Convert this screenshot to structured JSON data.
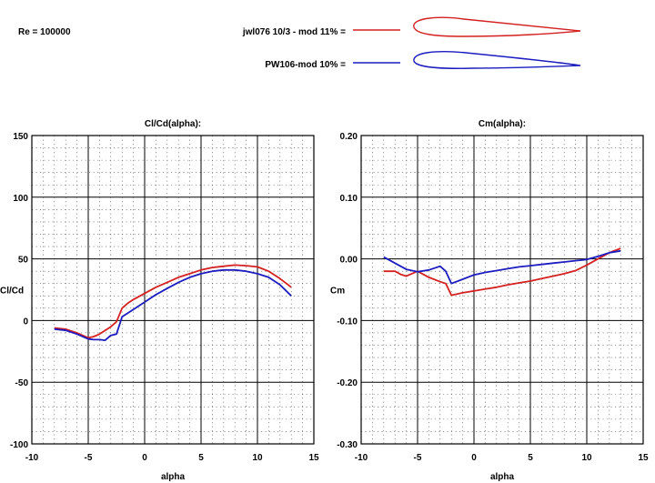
{
  "header": {
    "reynolds": "Re = 100000",
    "legend": [
      {
        "name": "jwl076 10/3  - mod 11% =",
        "color": "#d42020"
      },
      {
        "name": "PW106-mod 10% =",
        "color": "#1c1cc0"
      }
    ]
  },
  "chart_data": [
    {
      "type": "line",
      "title": "Cl/Cd(alpha):",
      "xlabel": "alpha",
      "ylabel": "Cl/Cd",
      "xlim": [
        -10,
        15
      ],
      "ylim": [
        -100,
        150
      ],
      "xticks": [
        "-10",
        "-5",
        "0",
        "5",
        "10",
        "15"
      ],
      "yticks": [
        "-100",
        "-50",
        "0",
        "50",
        "100",
        "150"
      ],
      "grid": true,
      "series": [
        {
          "name": "jwl076 10/3  - mod 11%",
          "color": "#d42020",
          "x": [
            -8,
            -7,
            -6,
            -5,
            -4.5,
            -4,
            -3,
            -2.5,
            -2,
            -1.5,
            -1,
            0,
            1,
            2,
            3,
            4,
            5,
            6,
            7,
            8,
            9,
            10,
            11,
            12,
            13
          ],
          "y": [
            -6,
            -7,
            -10,
            -14,
            -13,
            -11,
            -5,
            -1,
            10,
            14,
            17,
            22,
            27,
            31,
            35,
            38,
            41,
            43,
            44,
            45,
            44.5,
            43.5,
            40,
            34,
            27
          ]
        },
        {
          "name": "PW106-mod 10%",
          "color": "#1c1cc0",
          "x": [
            -8,
            -7,
            -6,
            -5,
            -4.5,
            -4,
            -3.5,
            -3,
            -2.5,
            -2,
            -1,
            0,
            1,
            2,
            3,
            4,
            5,
            6,
            7,
            8,
            9,
            10,
            11,
            12,
            13
          ],
          "y": [
            -7,
            -8,
            -11,
            -15,
            -15.5,
            -15.5,
            -16,
            -12,
            -11,
            3,
            9,
            15,
            21,
            26,
            31,
            35,
            38,
            40,
            41,
            41,
            40,
            38,
            35,
            29,
            20
          ]
        }
      ]
    },
    {
      "type": "line",
      "title": "Cm(alpha):",
      "xlabel": "alpha",
      "ylabel": "Cm",
      "xlim": [
        -10,
        15
      ],
      "ylim": [
        -0.3,
        0.2
      ],
      "xticks": [
        "-10",
        "-5",
        "0",
        "5",
        "10",
        "15"
      ],
      "yticks": [
        "-0.30",
        "-0.20",
        "-0.10",
        "0.00",
        "0.10",
        "0.20"
      ],
      "grid": true,
      "series": [
        {
          "name": "jwl076 10/3  - mod 11%",
          "color": "#d42020",
          "x": [
            -8,
            -7,
            -6.5,
            -6,
            -5,
            -4,
            -3,
            -2.5,
            -2,
            -1,
            0,
            1,
            2,
            3,
            4,
            5,
            6,
            7,
            8,
            9,
            10,
            11,
            12,
            13
          ],
          "y": [
            -0.02,
            -0.02,
            -0.025,
            -0.028,
            -0.02,
            -0.03,
            -0.037,
            -0.04,
            -0.059,
            -0.055,
            -0.052,
            -0.049,
            -0.046,
            -0.042,
            -0.039,
            -0.036,
            -0.032,
            -0.028,
            -0.024,
            -0.019,
            -0.01,
            0.0,
            0.01,
            0.017
          ]
        },
        {
          "name": "PW106-mod 10%",
          "color": "#1c1cc0",
          "x": [
            -8,
            -7,
            -6,
            -5,
            -4,
            -3,
            -2.5,
            -2,
            -1,
            0,
            1,
            2,
            3,
            4,
            5,
            6,
            7,
            8,
            9,
            10,
            11,
            12,
            13
          ],
          "y": [
            0.003,
            -0.007,
            -0.017,
            -0.021,
            -0.018,
            -0.012,
            -0.02,
            -0.04,
            -0.033,
            -0.026,
            -0.022,
            -0.019,
            -0.016,
            -0.013,
            -0.011,
            -0.009,
            -0.007,
            -0.005,
            -0.003,
            -0.001,
            0.004,
            0.01,
            0.013
          ]
        }
      ]
    }
  ]
}
